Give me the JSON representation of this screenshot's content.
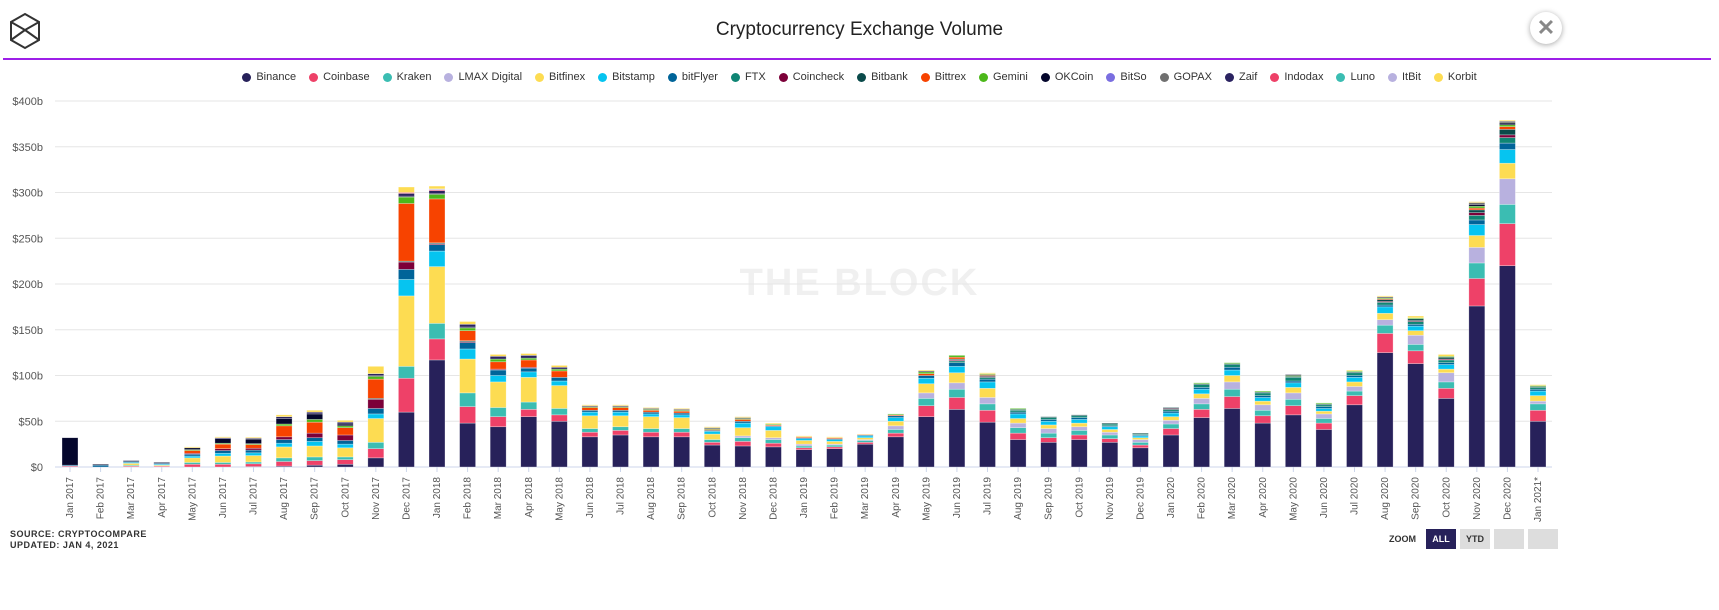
{
  "header": {
    "title": "Cryptocurrency Exchange Volume",
    "close_label": "✕"
  },
  "watermark": "THE BLOCK",
  "footer": {
    "source": "SOURCE: CRYPTOCOMPARE",
    "updated": "UPDATED: JAN 4, 2021"
  },
  "zoom": {
    "label": "ZOOM",
    "buttons": [
      "ALL",
      "YTD",
      "",
      ""
    ],
    "active": "ALL"
  },
  "chart_data": {
    "type": "bar",
    "stacked": true,
    "title": "Cryptocurrency Exchange Volume",
    "xlabel": "",
    "ylabel": "",
    "ylim": [
      0,
      400
    ],
    "yticks": [
      0,
      50,
      100,
      150,
      200,
      250,
      300,
      350,
      400
    ],
    "ytick_labels": [
      "$0",
      "$50b",
      "$100b",
      "$150b",
      "$200b",
      "$250b",
      "$300b",
      "$350b",
      "$400b"
    ],
    "grid": true,
    "legend_position": "top-center",
    "categories": [
      "Jan 2017",
      "Feb 2017",
      "Mar 2017",
      "Apr 2017",
      "May 2017",
      "Jun 2017",
      "Jul 2017",
      "Aug 2017",
      "Sep 2017",
      "Oct 2017",
      "Nov 2017",
      "Dec 2017",
      "Jan 2018",
      "Feb 2018",
      "Mar 2018",
      "Apr 2018",
      "May 2018",
      "Jun 2018",
      "Jul 2018",
      "Aug 2018",
      "Sep 2018",
      "Oct 2018",
      "Nov 2018",
      "Dec 2018",
      "Jan 2019",
      "Feb 2019",
      "Mar 2019",
      "Apr 2019",
      "May 2019",
      "Jun 2019",
      "Jul 2019",
      "Aug 2019",
      "Sep 2019",
      "Oct 2019",
      "Nov 2019",
      "Dec 2019",
      "Jan 2020",
      "Feb 2020",
      "Mar 2020",
      "Apr 2020",
      "May 2020",
      "Jun 2020",
      "Jul 2020",
      "Aug 2020",
      "Sep 2020",
      "Oct 2020",
      "Nov 2020",
      "Dec 2020",
      "Jan 2021*"
    ],
    "series": [
      {
        "name": "Binance",
        "color": "#27215a"
      },
      {
        "name": "Coinbase",
        "color": "#ee4168"
      },
      {
        "name": "Kraken",
        "color": "#3bbdb2"
      },
      {
        "name": "LMAX Digital",
        "color": "#b8b1df"
      },
      {
        "name": "Bitfinex",
        "color": "#fddc52"
      },
      {
        "name": "Bitstamp",
        "color": "#06c4f0"
      },
      {
        "name": "bitFlyer",
        "color": "#006499"
      },
      {
        "name": "FTX",
        "color": "#0f8574"
      },
      {
        "name": "Coincheck",
        "color": "#7c0039"
      },
      {
        "name": "Bitbank",
        "color": "#0a4a4a"
      },
      {
        "name": "Bittrex",
        "color": "#f74300"
      },
      {
        "name": "Gemini",
        "color": "#4cb81a"
      },
      {
        "name": "OKCoin",
        "color": "#04062c"
      },
      {
        "name": "BitSo",
        "color": "#7a6ee0"
      },
      {
        "name": "GOPAX",
        "color": "#707070"
      },
      {
        "name": "Zaif",
        "color": "#2b2361"
      },
      {
        "name": "Indodax",
        "color": "#ee4168"
      },
      {
        "name": "Luno",
        "color": "#3bbdb2"
      },
      {
        "name": "ItBit",
        "color": "#b8b1df"
      },
      {
        "name": "Korbit",
        "color": "#fddc52"
      }
    ],
    "unit": "USD billions",
    "values_by_category": [
      [
        0,
        1,
        0,
        0,
        0,
        0,
        1,
        0,
        0,
        0,
        0,
        0,
        30,
        0,
        0,
        0,
        0,
        0,
        0,
        0
      ],
      [
        0,
        0,
        0,
        0,
        0,
        0,
        2,
        0,
        0,
        0,
        0,
        0,
        1,
        0,
        0,
        0,
        0,
        0,
        0,
        0
      ],
      [
        0,
        1,
        1,
        0,
        2,
        1,
        1,
        0,
        0,
        0,
        0,
        0,
        1,
        0,
        0,
        0,
        0,
        0,
        0,
        0
      ],
      [
        0,
        1,
        0,
        0,
        1,
        1,
        1,
        0,
        0,
        0,
        0,
        0,
        1,
        0,
        0,
        0,
        0,
        0,
        0,
        0
      ],
      [
        0,
        3,
        2,
        0,
        5,
        2,
        2,
        0,
        1,
        0,
        3,
        1,
        2,
        0,
        0,
        0,
        0,
        0,
        0,
        1
      ],
      [
        0,
        3,
        2,
        0,
        7,
        3,
        3,
        0,
        2,
        0,
        5,
        1,
        5,
        0,
        0,
        1,
        0,
        0,
        0,
        1
      ],
      [
        0.5,
        3,
        2,
        0,
        7,
        3,
        3,
        0,
        2,
        0,
        4,
        1,
        5,
        0,
        0,
        1,
        0,
        0,
        0,
        1
      ],
      [
        1,
        5,
        4,
        0,
        12,
        4,
        4,
        0,
        3,
        0,
        12,
        2,
        6,
        0,
        0,
        2,
        0,
        0,
        0,
        2
      ],
      [
        2,
        5,
        4,
        0,
        12,
        5,
        4,
        0,
        5,
        0,
        12,
        3,
        6,
        0,
        0,
        2,
        0,
        0,
        0,
        2
      ],
      [
        3,
        5,
        3,
        0,
        10,
        4,
        4,
        0,
        6,
        0,
        8,
        2,
        2,
        0,
        0,
        2,
        0,
        0,
        0,
        2
      ],
      [
        10,
        10,
        7,
        0,
        26,
        5,
        6,
        0,
        10,
        1,
        21,
        3,
        1,
        0,
        0,
        2,
        0,
        0,
        0,
        8
      ],
      [
        60,
        37,
        13,
        0,
        77,
        18,
        11,
        0,
        8,
        1,
        63,
        7,
        1,
        0,
        0,
        3,
        1,
        0,
        0,
        6
      ],
      [
        117,
        23,
        17,
        0,
        62,
        17,
        7,
        0,
        1,
        1,
        48,
        5,
        1,
        0,
        0,
        3,
        1,
        0,
        1,
        3
      ],
      [
        48,
        18,
        15,
        0,
        37,
        11,
        7,
        0,
        1,
        1,
        11,
        3,
        1,
        0,
        0,
        3,
        0,
        0,
        0,
        3
      ],
      [
        44,
        11,
        10,
        0,
        28,
        7,
        6,
        0,
        1,
        0,
        8,
        3,
        0,
        0,
        0,
        3,
        0,
        0,
        0,
        2
      ],
      [
        55,
        8,
        8,
        0,
        27,
        6,
        4,
        0,
        1,
        0,
        8,
        2,
        0,
        0,
        0,
        3,
        0,
        0,
        0,
        2
      ],
      [
        50,
        7,
        7,
        0,
        25,
        5,
        4,
        0,
        0,
        0,
        7,
        2,
        0,
        0,
        0,
        2,
        0,
        0,
        0,
        2
      ],
      [
        33,
        5,
        4,
        0,
        14,
        4,
        2,
        0,
        0,
        0,
        3,
        1,
        0,
        0,
        0,
        1,
        0,
        0,
        0,
        1
      ],
      [
        35,
        5,
        4,
        0,
        12,
        4,
        2,
        0,
        0,
        0,
        3,
        1,
        0,
        0,
        0,
        1,
        0,
        0,
        0,
        1
      ],
      [
        33,
        5,
        4,
        0,
        13,
        3,
        2,
        0,
        0,
        0,
        2,
        1,
        0,
        0,
        0,
        1,
        0,
        0,
        0,
        1
      ],
      [
        33,
        5,
        4,
        0,
        12,
        3,
        2,
        0,
        0,
        0,
        2,
        1,
        0,
        0,
        0,
        1,
        0,
        0,
        0,
        1
      ],
      [
        24,
        3,
        3,
        0,
        6,
        3,
        1,
        0,
        0,
        0,
        1,
        1,
        0,
        0,
        0,
        1,
        0,
        0,
        0,
        1
      ],
      [
        23,
        5,
        4,
        2,
        9,
        5,
        2,
        0,
        0,
        0,
        2,
        1,
        0,
        0,
        0,
        1,
        0,
        0,
        0,
        1
      ],
      [
        22,
        4,
        4,
        2,
        8,
        4,
        1,
        0,
        0,
        0,
        1,
        1,
        0,
        0,
        0,
        0,
        0,
        0,
        0,
        1
      ],
      [
        19,
        2,
        2,
        2,
        4,
        2,
        1,
        0,
        0,
        0,
        1,
        0,
        0,
        0,
        0,
        0,
        0,
        0,
        0,
        1
      ],
      [
        20,
        2,
        2,
        1,
        3,
        2,
        1,
        0,
        0,
        0,
        1,
        0,
        0,
        0,
        0,
        0,
        0,
        0,
        0,
        1
      ],
      [
        25,
        2,
        2,
        1,
        2,
        2,
        1,
        0,
        0,
        0,
        0.5,
        0,
        0,
        0,
        0,
        0,
        0,
        0,
        0,
        0.5
      ],
      [
        33,
        4,
        4,
        4,
        5,
        4,
        2,
        0,
        0,
        0,
        1,
        1,
        0,
        0,
        0,
        0,
        0,
        0,
        0,
        0
      ],
      [
        55,
        12,
        8,
        6,
        10,
        6,
        3,
        0,
        0,
        0,
        2,
        2,
        1,
        0,
        0,
        0,
        0,
        0,
        0,
        1
      ],
      [
        63,
        13,
        9,
        7,
        11,
        7,
        4,
        2,
        1,
        1,
        2,
        2,
        0,
        0,
        0,
        0,
        0,
        0,
        0,
        0
      ],
      [
        49,
        13,
        7,
        7,
        10,
        7,
        3,
        2,
        1,
        1,
        1,
        1,
        0,
        0,
        0,
        0,
        0,
        0,
        0,
        1
      ],
      [
        30,
        7,
        6,
        5,
        5,
        5,
        2,
        2,
        0,
        1,
        0,
        1,
        0,
        0,
        0,
        0,
        0,
        0,
        0,
        0
      ],
      [
        27,
        5,
        5,
        5,
        4,
        4,
        2,
        2,
        0,
        1,
        0,
        0,
        0,
        0,
        0,
        0,
        0,
        0,
        0,
        0
      ],
      [
        30,
        5,
        5,
        4,
        4,
        4,
        2,
        2,
        0,
        1,
        0,
        0,
        0,
        0,
        0,
        0,
        0,
        0,
        0,
        0
      ],
      [
        27,
        4,
        4,
        3,
        3,
        3,
        1,
        2,
        0,
        1,
        0,
        0,
        0,
        0,
        0,
        0,
        0,
        0,
        0,
        0
      ],
      [
        21,
        3,
        3,
        3,
        2,
        2,
        1,
        1,
        0,
        1,
        0,
        0,
        0,
        0,
        0,
        0,
        0,
        0,
        0,
        0
      ],
      [
        35,
        7,
        5,
        4,
        4,
        4,
        2,
        2,
        1,
        1,
        0,
        0,
        0,
        0,
        0,
        0,
        0,
        0,
        0,
        0
      ],
      [
        54,
        9,
        6,
        6,
        5,
        5,
        2,
        3,
        0,
        1,
        0,
        1,
        0,
        0,
        0,
        0,
        0,
        0,
        0,
        0
      ],
      [
        64,
        13,
        8,
        8,
        7,
        6,
        3,
        3,
        0,
        1,
        0,
        1,
        0,
        0,
        0,
        0,
        0,
        0,
        0,
        0
      ],
      [
        48,
        8,
        6,
        6,
        4,
        4,
        2,
        3,
        0,
        1,
        0,
        1,
        0,
        0,
        0,
        0,
        0,
        0,
        0,
        0
      ],
      [
        57,
        10,
        7,
        7,
        6,
        5,
        2,
        4,
        0,
        1,
        0,
        1,
        1,
        0,
        0,
        0,
        0,
        0,
        0,
        0
      ],
      [
        41,
        7,
        5,
        5,
        3,
        3,
        2,
        2,
        0,
        1,
        0,
        1,
        0,
        0,
        0,
        0,
        0,
        0,
        0,
        0
      ],
      [
        68,
        10,
        5,
        5,
        5,
        5,
        2,
        3,
        0,
        1,
        0,
        1,
        0,
        0,
        0,
        0,
        0,
        0,
        0,
        1
      ],
      [
        125,
        21,
        9,
        6,
        7,
        7,
        2,
        3,
        1,
        2,
        1,
        1,
        1,
        0,
        0,
        0,
        0,
        0,
        0,
        1
      ],
      [
        113,
        14,
        7,
        10,
        5,
        5,
        2,
        3,
        1,
        2,
        0,
        1,
        0,
        0,
        0,
        0,
        0,
        0,
        0,
        2
      ],
      [
        75,
        11,
        7,
        10,
        4,
        5,
        2,
        3,
        1,
        2,
        0,
        1,
        0,
        0,
        0,
        0,
        0,
        0,
        0,
        2
      ],
      [
        176,
        30,
        17,
        17,
        13,
        12,
        5,
        5,
        3,
        3,
        2,
        2,
        2,
        0,
        2,
        0,
        0,
        0,
        0,
        1
      ],
      [
        220,
        46,
        21,
        28,
        17,
        15,
        7,
        6,
        3,
        6,
        3,
        2,
        2,
        0,
        2,
        0,
        0,
        0,
        0,
        1
      ],
      [
        50,
        12,
        7,
        3,
        6,
        5,
        2,
        2,
        0,
        1,
        0,
        1,
        0,
        0,
        0,
        0,
        0,
        0,
        0,
        1
      ]
    ]
  }
}
